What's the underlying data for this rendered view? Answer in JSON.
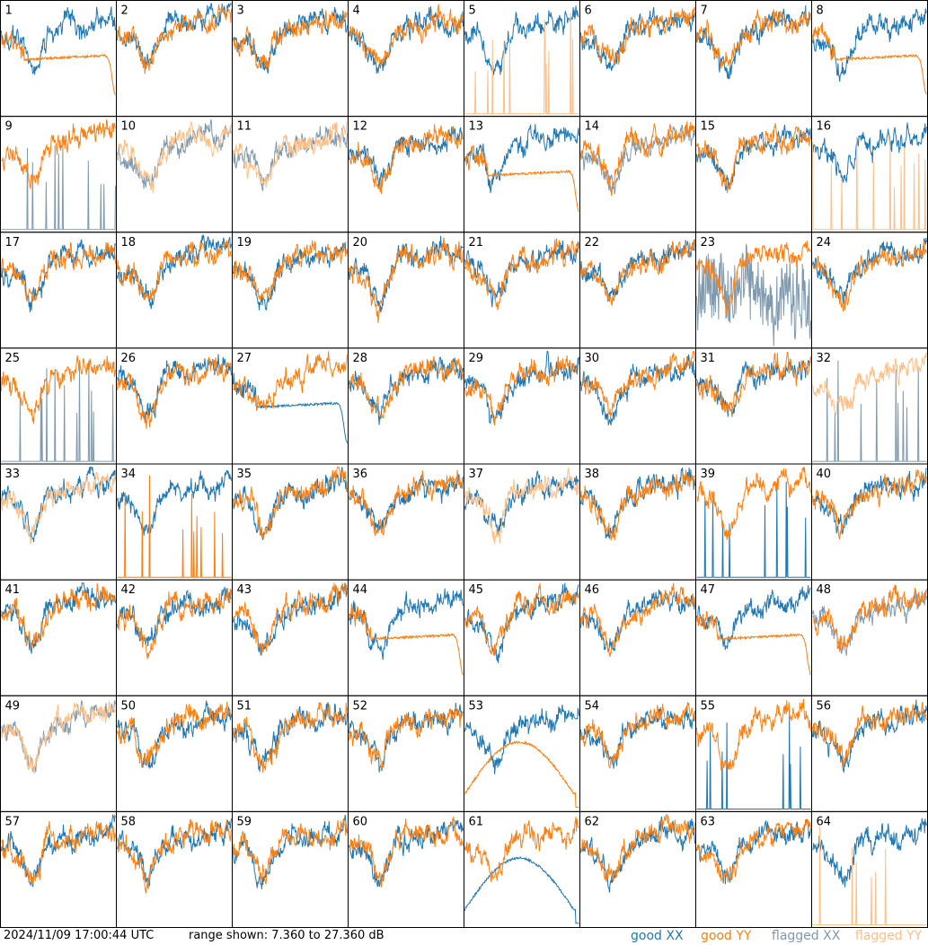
{
  "footer": {
    "timestamp": "2024/11/09 17:00:44 UTC",
    "range": "range shown: 7.360 to 27.360 dB"
  },
  "legend": [
    {
      "id": "good_xx",
      "label": "good XX",
      "color": "#1f77b4"
    },
    {
      "id": "good_yy",
      "label": "good YY",
      "color": "#ff7f0e"
    },
    {
      "id": "flagged_xx",
      "label": "flagged XX",
      "color": "#7f9aaf"
    },
    {
      "id": "flagged_yy",
      "label": "flagged YY",
      "color": "#ffbf86"
    }
  ],
  "chart_data": {
    "type": "line",
    "title": "",
    "ylim": [
      7.36,
      27.36
    ],
    "layout": "8x8 small multiples",
    "panels": [
      {
        "id": 1,
        "xx": "good",
        "yy": "good",
        "yy_pattern": "flat_mid"
      },
      {
        "id": 2,
        "xx": "good",
        "yy": "good"
      },
      {
        "id": 3,
        "xx": "good",
        "yy": "good"
      },
      {
        "id": 4,
        "xx": "good",
        "yy": "good"
      },
      {
        "id": 5,
        "xx": "good",
        "yy": "flagged",
        "yy_pattern": "spikes"
      },
      {
        "id": 6,
        "xx": "good",
        "yy": "good"
      },
      {
        "id": 7,
        "xx": "good",
        "yy": "good"
      },
      {
        "id": 8,
        "xx": "good",
        "yy": "good",
        "yy_pattern": "flat_mid"
      },
      {
        "id": 9,
        "xx": "flagged",
        "yy": "good",
        "xx_pattern": "spikes"
      },
      {
        "id": 10,
        "xx": "flagged",
        "yy": "flagged"
      },
      {
        "id": 11,
        "xx": "flagged",
        "yy": "flagged"
      },
      {
        "id": 12,
        "xx": "good",
        "yy": "good"
      },
      {
        "id": 13,
        "xx": "good",
        "yy": "good",
        "yy_pattern": "flat_mid"
      },
      {
        "id": 14,
        "xx": "flagged",
        "yy": "good"
      },
      {
        "id": 15,
        "xx": "good",
        "yy": "good"
      },
      {
        "id": 16,
        "xx": "good",
        "yy": "flagged",
        "yy_pattern": "spikes"
      },
      {
        "id": 17,
        "xx": "good",
        "yy": "good"
      },
      {
        "id": 18,
        "xx": "good",
        "yy": "good"
      },
      {
        "id": 19,
        "xx": "good",
        "yy": "good"
      },
      {
        "id": 20,
        "xx": "good",
        "yy": "good"
      },
      {
        "id": 21,
        "xx": "good",
        "yy": "good"
      },
      {
        "id": 22,
        "xx": "good",
        "yy": "good"
      },
      {
        "id": 23,
        "xx": "flagged",
        "yy": "good",
        "xx_pattern": "noisy_low"
      },
      {
        "id": 24,
        "xx": "good",
        "yy": "good"
      },
      {
        "id": 25,
        "xx": "flagged",
        "yy": "good",
        "xx_pattern": "spikes"
      },
      {
        "id": 26,
        "xx": "good",
        "yy": "good"
      },
      {
        "id": 27,
        "xx": "good",
        "yy": "good",
        "xx_pattern": "flat_mid"
      },
      {
        "id": 28,
        "xx": "good",
        "yy": "good"
      },
      {
        "id": 29,
        "xx": "good",
        "yy": "good"
      },
      {
        "id": 30,
        "xx": "good",
        "yy": "good"
      },
      {
        "id": 31,
        "xx": "good",
        "yy": "good"
      },
      {
        "id": 32,
        "xx": "flagged",
        "yy": "flagged",
        "xx_pattern": "spikes"
      },
      {
        "id": 33,
        "xx": "good",
        "yy": "flagged"
      },
      {
        "id": 34,
        "xx": "good",
        "yy": "good",
        "yy_pattern": "spikes"
      },
      {
        "id": 35,
        "xx": "good",
        "yy": "good"
      },
      {
        "id": 36,
        "xx": "good",
        "yy": "good"
      },
      {
        "id": 37,
        "xx": "good",
        "yy": "flagged"
      },
      {
        "id": 38,
        "xx": "good",
        "yy": "good"
      },
      {
        "id": 39,
        "xx": "good",
        "yy": "good",
        "xx_pattern": "spikes"
      },
      {
        "id": 40,
        "xx": "good",
        "yy": "good"
      },
      {
        "id": 41,
        "xx": "good",
        "yy": "good"
      },
      {
        "id": 42,
        "xx": "good",
        "yy": "good"
      },
      {
        "id": 43,
        "xx": "good",
        "yy": "good"
      },
      {
        "id": 44,
        "xx": "good",
        "yy": "good",
        "yy_pattern": "flat_mid"
      },
      {
        "id": 45,
        "xx": "good",
        "yy": "good"
      },
      {
        "id": 46,
        "xx": "good",
        "yy": "good"
      },
      {
        "id": 47,
        "xx": "good",
        "yy": "good",
        "yy_pattern": "flat_mid"
      },
      {
        "id": 48,
        "xx": "flagged",
        "yy": "good"
      },
      {
        "id": 49,
        "xx": "flagged",
        "yy": "flagged"
      },
      {
        "id": 50,
        "xx": "good",
        "yy": "good"
      },
      {
        "id": 51,
        "xx": "good",
        "yy": "good"
      },
      {
        "id": 52,
        "xx": "good",
        "yy": "good"
      },
      {
        "id": 53,
        "xx": "good",
        "yy": "good",
        "yy_pattern": "bowl"
      },
      {
        "id": 54,
        "xx": "good",
        "yy": "good"
      },
      {
        "id": 55,
        "xx": "good",
        "yy": "good",
        "xx_pattern": "spikes"
      },
      {
        "id": 56,
        "xx": "good",
        "yy": "good"
      },
      {
        "id": 57,
        "xx": "good",
        "yy": "good"
      },
      {
        "id": 58,
        "xx": "good",
        "yy": "good"
      },
      {
        "id": 59,
        "xx": "good",
        "yy": "good"
      },
      {
        "id": 60,
        "xx": "good",
        "yy": "good"
      },
      {
        "id": 61,
        "xx": "good",
        "yy": "good",
        "xx_pattern": "bowl"
      },
      {
        "id": 62,
        "xx": "good",
        "yy": "good"
      },
      {
        "id": 63,
        "xx": "good",
        "yy": "good"
      },
      {
        "id": 64,
        "xx": "good",
        "yy": "flagged",
        "yy_pattern": "spikes"
      }
    ]
  }
}
